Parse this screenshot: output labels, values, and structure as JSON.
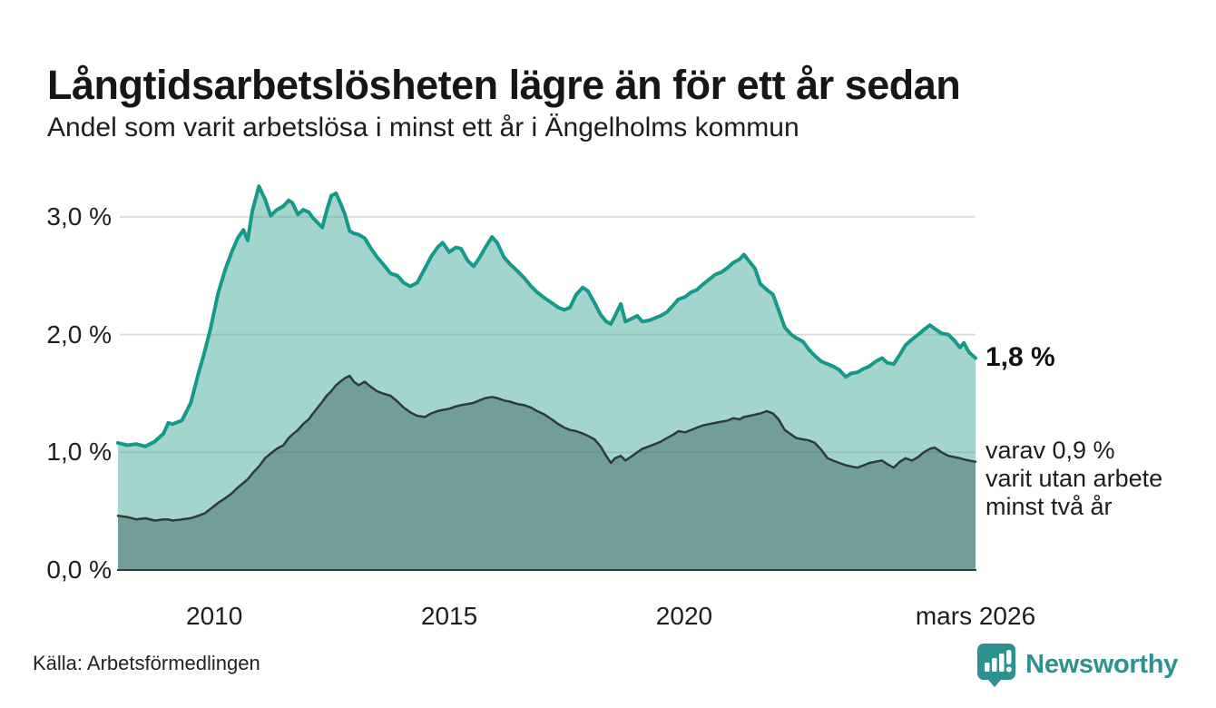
{
  "header": {
    "title": "Långtidsarbetslösheten lägre än för ett år sedan",
    "subtitle": "Andel som varit arbetslösa i minst ett år i Ängelholms kommun"
  },
  "footer": {
    "source": "Källa: Arbetsförmedlingen",
    "brand": "Newsworthy"
  },
  "colors": {
    "line_total": "#17998a",
    "fill_total": "#a3d5ce",
    "line_two_years": "#2e3c39",
    "fill_two_years": "#719e99",
    "grid": "#dcdcdc",
    "axis": "#3a3a3a",
    "brand_teal": "#2d9190",
    "text": "#1a1a1a"
  },
  "chart_data": {
    "type": "area",
    "title": "Långtidsarbetslösheten lägre än för ett år sedan",
    "subtitle": "Andel som varit arbetslösa i minst ett år i Ängelholms kommun",
    "unit": "%",
    "grid": true,
    "x_axis": {
      "range": [
        2007.95,
        2026.2
      ],
      "ticks": [
        {
          "x": 2010,
          "label": "2010"
        },
        {
          "x": 2015,
          "label": "2015"
        },
        {
          "x": 2020,
          "label": "2020"
        },
        {
          "x": 2026.2,
          "label": "mars 2026"
        }
      ]
    },
    "y_axis": {
      "range": [
        0,
        3.3
      ],
      "ticks": [
        {
          "y": 0,
          "label": "0,0 %"
        },
        {
          "y": 1,
          "label": "1,0 %"
        },
        {
          "y": 2,
          "label": "2,0 %"
        },
        {
          "y": 3,
          "label": "3,0 %"
        }
      ]
    },
    "x": [
      2007.95,
      2008.15,
      2008.34,
      2008.53,
      2008.73,
      2008.92,
      2009.02,
      2009.11,
      2009.31,
      2009.5,
      2009.65,
      2009.79,
      2009.92,
      2010.08,
      2010.23,
      2010.37,
      2010.5,
      2010.62,
      2010.71,
      2010.81,
      2010.95,
      2011.08,
      2011.2,
      2011.33,
      2011.47,
      2011.58,
      2011.66,
      2011.78,
      2011.89,
      2012.01,
      2012.1,
      2012.2,
      2012.3,
      2012.39,
      2012.49,
      2012.59,
      2012.68,
      2012.78,
      2012.88,
      2012.97,
      2013.07,
      2013.2,
      2013.32,
      2013.46,
      2013.59,
      2013.75,
      2013.9,
      2014.03,
      2014.17,
      2014.32,
      2014.48,
      2014.61,
      2014.75,
      2014.86,
      2015.0,
      2015.14,
      2015.25,
      2015.39,
      2015.52,
      2015.64,
      2015.77,
      2015.91,
      2016.02,
      2016.16,
      2016.29,
      2016.45,
      2016.6,
      2016.74,
      2016.87,
      2017.03,
      2017.18,
      2017.32,
      2017.45,
      2017.57,
      2017.7,
      2017.84,
      2017.95,
      2018.09,
      2018.22,
      2018.34,
      2018.44,
      2018.53,
      2018.65,
      2018.75,
      2018.86,
      2019.0,
      2019.11,
      2019.25,
      2019.38,
      2019.5,
      2019.63,
      2019.77,
      2019.88,
      2020.02,
      2020.15,
      2020.27,
      2020.41,
      2020.54,
      2020.66,
      2020.79,
      2020.93,
      2021.04,
      2021.18,
      2021.27,
      2021.39,
      2021.51,
      2021.62,
      2021.76,
      2021.89,
      2022.01,
      2022.14,
      2022.28,
      2022.39,
      2022.53,
      2022.66,
      2022.78,
      2022.92,
      2023.05,
      2023.17,
      2023.3,
      2023.44,
      2023.55,
      2023.69,
      2023.82,
      2023.94,
      2024.07,
      2024.21,
      2024.32,
      2024.46,
      2024.59,
      2024.71,
      2024.85,
      2024.98,
      2025.1,
      2025.23,
      2025.33,
      2025.48,
      2025.62,
      2025.75,
      2025.87,
      2025.95,
      2026.06,
      2026.2
    ],
    "series": [
      {
        "name": "arbetslösa minst ett år",
        "color": "#17998a",
        "fill": "#a3d5ce",
        "line_width": 4,
        "values": [
          1.08,
          1.06,
          1.07,
          1.05,
          1.09,
          1.16,
          1.25,
          1.24,
          1.27,
          1.42,
          1.65,
          1.85,
          2.05,
          2.35,
          2.55,
          2.7,
          2.82,
          2.89,
          2.8,
          3.05,
          3.26,
          3.15,
          3.01,
          3.06,
          3.09,
          3.14,
          3.12,
          3.02,
          3.06,
          3.04,
          2.99,
          2.95,
          2.91,
          3.05,
          3.18,
          3.2,
          3.12,
          3.02,
          2.88,
          2.86,
          2.85,
          2.82,
          2.74,
          2.66,
          2.6,
          2.52,
          2.5,
          2.44,
          2.41,
          2.44,
          2.56,
          2.66,
          2.74,
          2.78,
          2.7,
          2.74,
          2.73,
          2.63,
          2.58,
          2.65,
          2.74,
          2.83,
          2.78,
          2.66,
          2.6,
          2.54,
          2.48,
          2.41,
          2.36,
          2.31,
          2.27,
          2.23,
          2.21,
          2.23,
          2.34,
          2.4,
          2.37,
          2.27,
          2.17,
          2.11,
          2.09,
          2.16,
          2.26,
          2.11,
          2.13,
          2.16,
          2.11,
          2.12,
          2.14,
          2.16,
          2.19,
          2.25,
          2.3,
          2.32,
          2.36,
          2.38,
          2.43,
          2.47,
          2.51,
          2.53,
          2.57,
          2.61,
          2.64,
          2.68,
          2.62,
          2.56,
          2.43,
          2.38,
          2.34,
          2.21,
          2.06,
          2.0,
          1.97,
          1.94,
          1.87,
          1.82,
          1.77,
          1.75,
          1.73,
          1.7,
          1.64,
          1.67,
          1.68,
          1.71,
          1.73,
          1.77,
          1.8,
          1.76,
          1.75,
          1.83,
          1.91,
          1.96,
          2.0,
          2.04,
          2.08,
          2.05,
          2.01,
          2.0,
          1.95,
          1.89,
          1.93,
          1.85,
          1.8
        ]
      },
      {
        "name": "varav utan arbete minst två år",
        "color": "#2e3c39",
        "fill": "#719e99",
        "line_width": 2.5,
        "values": [
          0.46,
          0.45,
          0.43,
          0.44,
          0.42,
          0.43,
          0.43,
          0.42,
          0.43,
          0.44,
          0.46,
          0.48,
          0.52,
          0.57,
          0.61,
          0.65,
          0.7,
          0.74,
          0.77,
          0.82,
          0.88,
          0.95,
          0.99,
          1.03,
          1.06,
          1.12,
          1.15,
          1.19,
          1.24,
          1.28,
          1.33,
          1.38,
          1.43,
          1.48,
          1.52,
          1.57,
          1.6,
          1.63,
          1.65,
          1.6,
          1.57,
          1.6,
          1.56,
          1.52,
          1.5,
          1.48,
          1.43,
          1.38,
          1.34,
          1.31,
          1.3,
          1.33,
          1.35,
          1.36,
          1.37,
          1.39,
          1.4,
          1.41,
          1.42,
          1.44,
          1.46,
          1.47,
          1.46,
          1.44,
          1.43,
          1.41,
          1.4,
          1.38,
          1.35,
          1.32,
          1.28,
          1.24,
          1.21,
          1.19,
          1.18,
          1.16,
          1.14,
          1.11,
          1.05,
          0.97,
          0.91,
          0.95,
          0.97,
          0.93,
          0.96,
          1.0,
          1.03,
          1.05,
          1.07,
          1.09,
          1.12,
          1.15,
          1.18,
          1.17,
          1.19,
          1.21,
          1.23,
          1.24,
          1.25,
          1.26,
          1.27,
          1.29,
          1.28,
          1.3,
          1.31,
          1.32,
          1.33,
          1.35,
          1.33,
          1.28,
          1.19,
          1.15,
          1.12,
          1.11,
          1.1,
          1.08,
          1.02,
          0.95,
          0.93,
          0.91,
          0.89,
          0.88,
          0.87,
          0.89,
          0.91,
          0.92,
          0.93,
          0.9,
          0.87,
          0.92,
          0.95,
          0.93,
          0.96,
          1.0,
          1.03,
          1.04,
          1.0,
          0.97,
          0.96,
          0.95,
          0.94,
          0.93,
          0.92
        ]
      }
    ],
    "end_labels": {
      "total": "1,8 %",
      "two_years_lines": [
        "varav 0,9 %",
        "varit utan arbete",
        "minst två år"
      ]
    }
  }
}
